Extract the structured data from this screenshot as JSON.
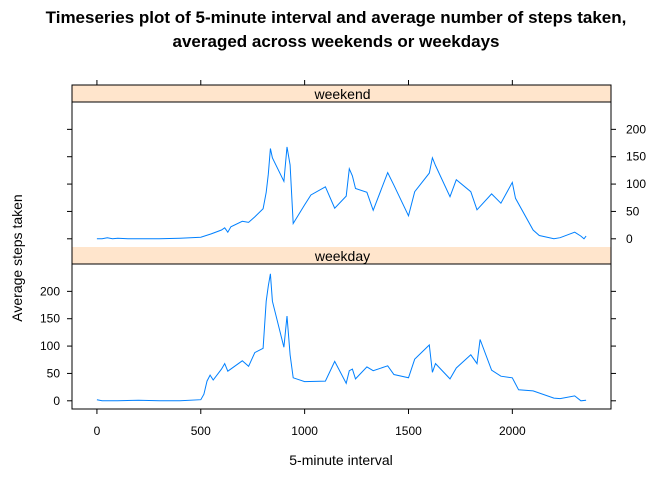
{
  "chart_data": {
    "type": "line",
    "title": "Timeseries plot of 5-minute interval and average number of steps taken, averaged across weekends or weekdays",
    "title_lines": [
      "Timeseries plot of 5-minute interval and average number of steps taken,",
      "averaged across weekends or weekdays"
    ],
    "xlabel": "5-minute interval",
    "ylabel": "Average steps taken",
    "xlim": [
      -120,
      2475
    ],
    "ylim": [
      -15,
      250
    ],
    "x_ticks": [
      0,
      500,
      1000,
      1500,
      2000
    ],
    "y_ticks": [
      0,
      50,
      100,
      150,
      200
    ],
    "line_color": "#0080ff",
    "strip_color": "#ffe5cc",
    "panels": [
      {
        "name": "weekend",
        "x": [
          0,
          25,
          50,
          75,
          100,
          150,
          200,
          300,
          400,
          500,
          550,
          600,
          615,
          630,
          645,
          700,
          730,
          760,
          800,
          815,
          825,
          835,
          845,
          900,
          915,
          930,
          945,
          1000,
          1030,
          1100,
          1145,
          1200,
          1215,
          1230,
          1245,
          1300,
          1330,
          1400,
          1430,
          1500,
          1530,
          1600,
          1615,
          1630,
          1700,
          1730,
          1800,
          1830,
          1900,
          1945,
          2000,
          2015,
          2100,
          2130,
          2200,
          2230,
          2300,
          2330,
          2345,
          2355
        ],
        "y": [
          0,
          0,
          2,
          0,
          1,
          0,
          0,
          0,
          1,
          3,
          9,
          16,
          20,
          12,
          22,
          32,
          30,
          40,
          55,
          85,
          118,
          165,
          148,
          105,
          168,
          135,
          28,
          62,
          80,
          95,
          56,
          78,
          128,
          115,
          92,
          85,
          52,
          121,
          98,
          42,
          86,
          120,
          148,
          134,
          77,
          108,
          86,
          53,
          82,
          65,
          103,
          74,
          16,
          6,
          0,
          2,
          12,
          5,
          0,
          5
        ]
      },
      {
        "name": "weekday",
        "x": [
          0,
          25,
          50,
          100,
          200,
          300,
          400,
          500,
          515,
          530,
          545,
          560,
          600,
          615,
          630,
          700,
          730,
          760,
          800,
          815,
          825,
          835,
          845,
          900,
          915,
          930,
          945,
          1000,
          1100,
          1145,
          1200,
          1215,
          1230,
          1245,
          1300,
          1330,
          1400,
          1430,
          1500,
          1530,
          1600,
          1615,
          1630,
          1700,
          1730,
          1800,
          1830,
          1845,
          1900,
          1945,
          2000,
          2030,
          2100,
          2200,
          2230,
          2300,
          2330,
          2355
        ],
        "y": [
          2,
          0,
          0,
          0,
          1,
          0,
          0,
          2,
          12,
          36,
          47,
          38,
          58,
          68,
          54,
          73,
          63,
          88,
          96,
          182,
          210,
          232,
          182,
          98,
          155,
          84,
          42,
          35,
          36,
          72,
          32,
          55,
          58,
          40,
          62,
          55,
          64,
          48,
          42,
          76,
          102,
          52,
          68,
          40,
          60,
          84,
          68,
          112,
          56,
          45,
          42,
          20,
          18,
          5,
          4,
          9,
          0,
          1
        ]
      }
    ]
  }
}
